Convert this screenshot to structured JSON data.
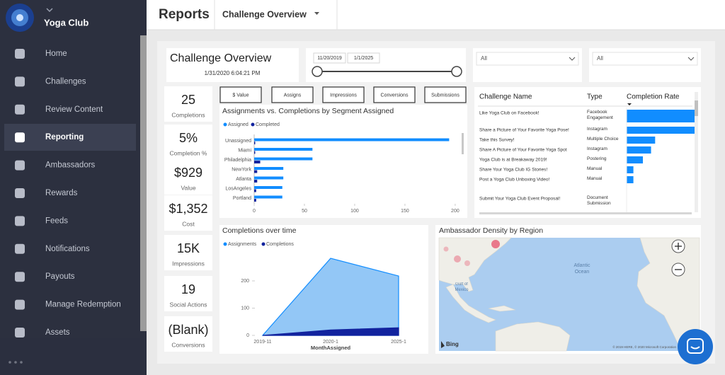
{
  "sidebar": {
    "brand": "Yoga Club",
    "menu": [
      "Home",
      "Challenges",
      "Review Content",
      "Reporting",
      "Ambassadors",
      "Rewards",
      "Feeds",
      "Notifications",
      "Payouts",
      "Manage Redemption",
      "Assets"
    ],
    "active_index": 3
  },
  "header": {
    "title": "Reports",
    "report": "Challenge Overview"
  },
  "report": {
    "title": "Challenge Overview",
    "timestamp": "1/31/2020 6:04:21 PM",
    "date_start": "11/20/2019",
    "date_end": "1/1/2025",
    "filters": [
      "All",
      "All"
    ]
  },
  "kpis": [
    {
      "value": "25",
      "label": "Completions"
    },
    {
      "value": "5%",
      "label": "Completion %"
    },
    {
      "value": "$929",
      "label": "Value"
    },
    {
      "value": "$1,352",
      "label": "Cost"
    },
    {
      "value": "15K",
      "label": "Impressions"
    },
    {
      "value": "19",
      "label": "Social Actions"
    },
    {
      "value": "(Blank)",
      "label": "Conversions"
    }
  ],
  "buttons": [
    "$ Value",
    "Assigns",
    "Impressions",
    "Conversions",
    "Submissions"
  ],
  "chart_data": [
    {
      "type": "bar",
      "orientation": "horizontal",
      "title": "Assignments vs. Completions by Segment Assigned",
      "categories": [
        "Unassigned",
        "Miami",
        "Philadelphia",
        "NewYork",
        "Atlanta",
        "LosAngeles",
        "Portland"
      ],
      "series": [
        {
          "name": "Assigned",
          "color": "#118dff",
          "values": [
            194,
            58,
            58,
            29,
            29,
            28,
            28
          ]
        },
        {
          "name": "Completed",
          "color": "#12239e",
          "values": [
            1,
            1,
            6,
            3,
            3,
            2,
            2
          ]
        }
      ],
      "xlim": [
        0,
        205
      ],
      "xticks": [
        0,
        50,
        100,
        150,
        200
      ],
      "legend": "top-left"
    },
    {
      "type": "area",
      "title": "Completions over time",
      "categories": [
        "2019-11",
        "2020-1",
        "2025-1"
      ],
      "x_label": "MonthAssigned",
      "series": [
        {
          "name": "Assignments",
          "color": "#118dff",
          "fill": "#93c7f6",
          "values": [
            0,
            283,
            218
          ]
        },
        {
          "name": "Completions",
          "color": "#12239e",
          "fill": "#12239e",
          "values": [
            0,
            20,
            28
          ]
        }
      ],
      "ylim": [
        0,
        300
      ],
      "yticks": [
        0,
        100,
        200
      ],
      "legend": "top-left"
    }
  ],
  "table": {
    "headers": [
      "Challenge Name",
      "Type",
      "Completion Rate"
    ],
    "rows": [
      [
        "Like Yoga Club on Facebook!",
        "Facebook Engagement"
      ],
      [
        "Share a Picture of Your Favorite Yoga Pose!",
        "Instagram"
      ],
      [
        "Take this Survey!",
        "Multiple Choice"
      ],
      [
        "Share A Picture of Your Favorite Yoga Spot",
        "Instagram"
      ],
      [
        "Yoga Club is at Breakaway 2019!",
        "Postering"
      ],
      [
        "Share Your Yoga Club IG Stories!",
        "Manual"
      ],
      [
        "Post a Yoga Club Unboxing Video!",
        "Manual"
      ],
      [
        "Submit Your Yoga Club Event Proposal!",
        "Document Submission"
      ]
    ],
    "rates": [
      50,
      50,
      21,
      18,
      12,
      5,
      5,
      0
    ],
    "rate_lim": [
      0,
      50
    ],
    "bar_color": "#118dff"
  },
  "map": {
    "title": "Ambassador Density by Region",
    "ocean_labels": [
      "Atlantic Ocean",
      "Gulf of Mexico"
    ],
    "provider": "Bing",
    "copyright": "© 2019 HERE, © 2020 Microsoft Corporation"
  }
}
